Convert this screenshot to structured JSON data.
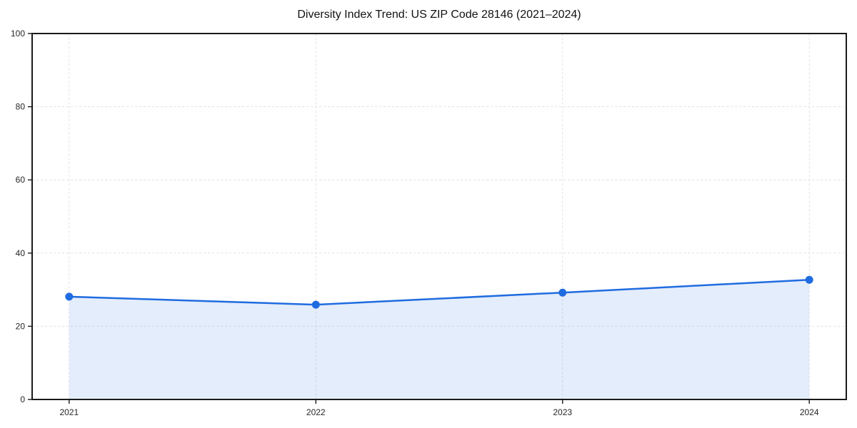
{
  "chart_data": {
    "type": "area",
    "title": "Diversity Index Trend: US ZIP Code 28146 (2021–2024)",
    "x": [
      2021,
      2022,
      2023,
      2024
    ],
    "x_tick_labels": [
      "2021",
      "2022",
      "2023",
      "2024"
    ],
    "y_ticks": [
      0,
      20,
      40,
      60,
      80,
      100
    ],
    "y_tick_labels": [
      "0",
      "20",
      "40",
      "60",
      "80",
      "100"
    ],
    "series": [
      {
        "name": "Diversity Index",
        "values": [
          28.1,
          25.9,
          29.2,
          32.7
        ]
      }
    ],
    "xlabel": "",
    "ylabel": "",
    "xlim": [
      2020.85,
      2024.15
    ],
    "ylim": [
      0,
      100
    ],
    "grid": true,
    "grid_line_style": "dashed",
    "legend": "none",
    "marker": "circle",
    "colors": {
      "line": "#1f6ce0",
      "marker": "#1f6ce0",
      "fill": "#1f6ce0",
      "fill_opacity": 0.12,
      "grid": "#e4e4e4",
      "spine": "#1a1a1a",
      "tick": "#1a1a1a",
      "tick_label": "#262626",
      "title": "#111111",
      "background": "#ffffff"
    }
  }
}
